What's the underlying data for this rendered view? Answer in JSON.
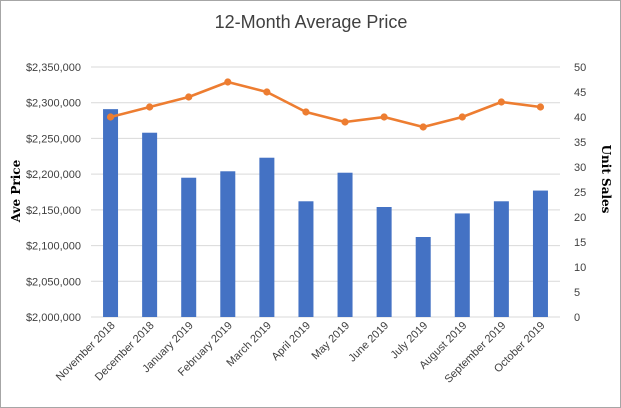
{
  "chart_data": {
    "type": "bar",
    "title": "12-Month Average Price",
    "categories": [
      "November 2018",
      "December 2018",
      "January 2019",
      "February 2019",
      "March 2019",
      "April 2019",
      "May 2019",
      "June 2019",
      "July 2019",
      "August 2019",
      "September 2019",
      "October 2019"
    ],
    "series": [
      {
        "name": "Ave Price",
        "type": "bar",
        "axis": "left",
        "color": "#4472C4",
        "values": [
          2291000,
          2258000,
          2195000,
          2204000,
          2223000,
          2162000,
          2202000,
          2154000,
          2112000,
          2145000,
          2162000,
          2177000
        ]
      },
      {
        "name": "Unit Sales",
        "type": "line",
        "axis": "right",
        "color": "#ED7D31",
        "values": [
          40,
          42,
          44,
          47,
          45,
          41,
          39,
          40,
          38,
          40,
          43,
          42
        ]
      }
    ],
    "ylabel": "Ave Price",
    "y2label": "Unit Sales",
    "ylim": [
      2000000,
      2350000
    ],
    "y2lim": [
      0,
      50
    ],
    "yticks": [
      "$2,000,000",
      "$2,050,000",
      "$2,100,000",
      "$2,150,000",
      "$2,200,000",
      "$2,250,000",
      "$2,300,000",
      "$2,350,000"
    ],
    "y2ticks": [
      "0",
      "5",
      "10",
      "15",
      "20",
      "25",
      "30",
      "35",
      "40",
      "45",
      "50"
    ],
    "grid": true,
    "legend": "none"
  }
}
